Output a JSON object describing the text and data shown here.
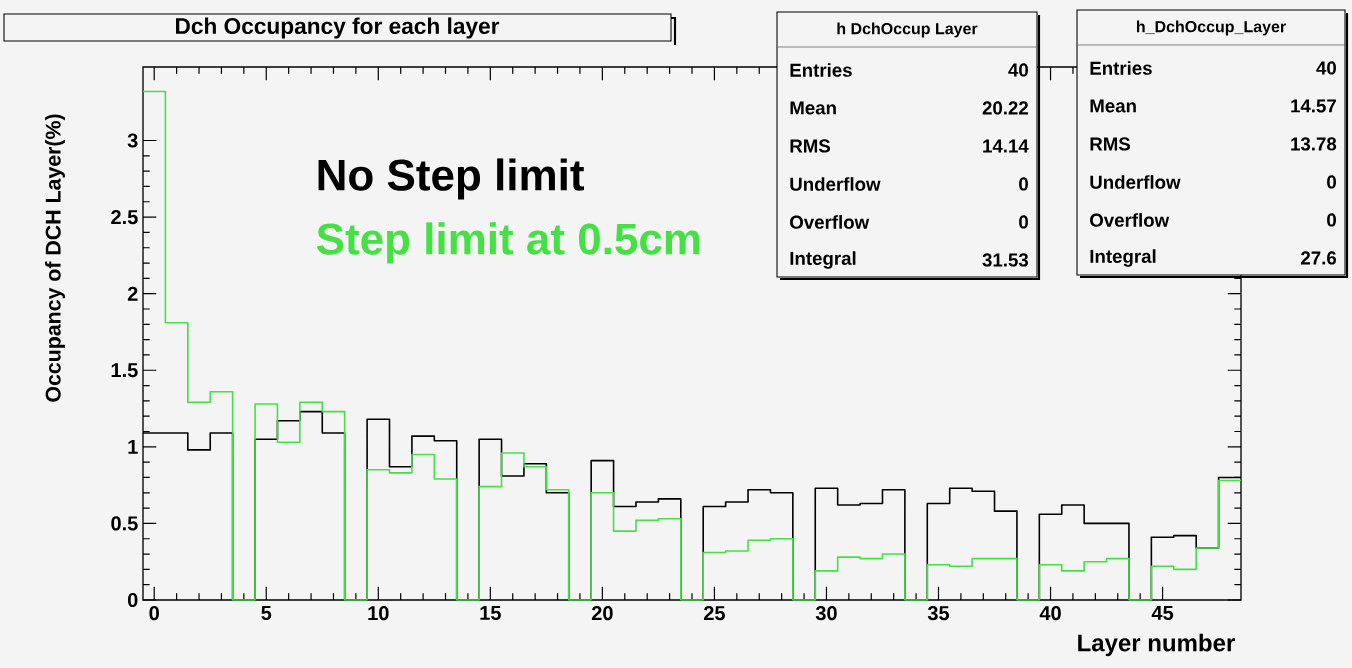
{
  "chart_data": {
    "type": "histogram",
    "title": "Dch Occupancy for each layer",
    "xlabel": "Layer number",
    "ylabel": "Occupancy of DCH Layer(%)",
    "bins": [
      -0.5,
      0.5,
      1.5,
      2.5,
      3.5,
      4.5,
      5.5,
      6.5,
      7.5,
      8.5,
      9.5,
      10.5,
      11.5,
      12.5,
      13.5,
      14.5,
      15.5,
      16.5,
      17.5,
      18.5,
      19.5,
      20.5,
      21.5,
      22.5,
      23.5,
      24.5,
      25.5,
      26.5,
      27.5,
      28.5,
      29.5,
      30.5,
      31.5,
      32.5,
      33.5,
      34.5,
      35.5,
      36.5,
      37.5,
      38.5,
      39.5,
      40.5,
      41.5,
      42.5,
      43.5,
      44.5,
      45.5,
      46.5,
      47.5,
      48.5
    ],
    "series": [
      {
        "name": "No  Step limit",
        "color": "#000000",
        "values": [
          1.09,
          1.09,
          0.98,
          1.09,
          0,
          1.05,
          1.17,
          1.23,
          1.09,
          0,
          1.18,
          0.87,
          1.07,
          1.04,
          0,
          1.05,
          0.81,
          0.89,
          0.7,
          0,
          0.91,
          0.61,
          0.64,
          0.66,
          0,
          0.61,
          0.64,
          0.72,
          0.7,
          0,
          0.73,
          0.62,
          0.63,
          0.72,
          0,
          0.63,
          0.73,
          0.71,
          0.58,
          0,
          0.56,
          0.62,
          0.5,
          0.5,
          0,
          0.41,
          0.42,
          0.34,
          0.8
        ]
      },
      {
        "name": "Step limit at 0.5cm",
        "color": "#44e044",
        "values": [
          3.32,
          1.81,
          1.29,
          1.36,
          0,
          1.28,
          1.03,
          1.29,
          1.23,
          0,
          0.85,
          0.83,
          0.95,
          0.79,
          0,
          0.74,
          0.96,
          0.87,
          0.72,
          0,
          0.7,
          0.45,
          0.52,
          0.53,
          0,
          0.31,
          0.32,
          0.39,
          0.4,
          0,
          0.19,
          0.28,
          0.27,
          0.3,
          0,
          0.23,
          0.22,
          0.27,
          0.27,
          0,
          0.23,
          0.19,
          0.25,
          0.27,
          0,
          0.22,
          0.2,
          0.34,
          0.78
        ]
      }
    ],
    "xlim": [
      -0.5,
      48.5
    ],
    "ylim": [
      0,
      3.48
    ],
    "xticks": [
      0,
      5,
      10,
      15,
      20,
      25,
      30,
      35,
      40,
      45
    ],
    "yticks": [
      0,
      0.5,
      1,
      1.5,
      2,
      2.5,
      3
    ],
    "annotations": [
      "h  DchOccup  Layer",
      "Entries",
      "40",
      "Mean",
      "20.22",
      "RMS",
      "14.14",
      "Underflow",
      "0",
      "Overflow",
      "0",
      "Integral",
      "31.53",
      "h_DchOccup_Layer",
      "Entries",
      "40",
      "Mean",
      "14.57",
      "RMS",
      "13.78",
      "Underflow",
      "0",
      "Overflow",
      "0",
      "Integral",
      "27.6"
    ]
  }
}
